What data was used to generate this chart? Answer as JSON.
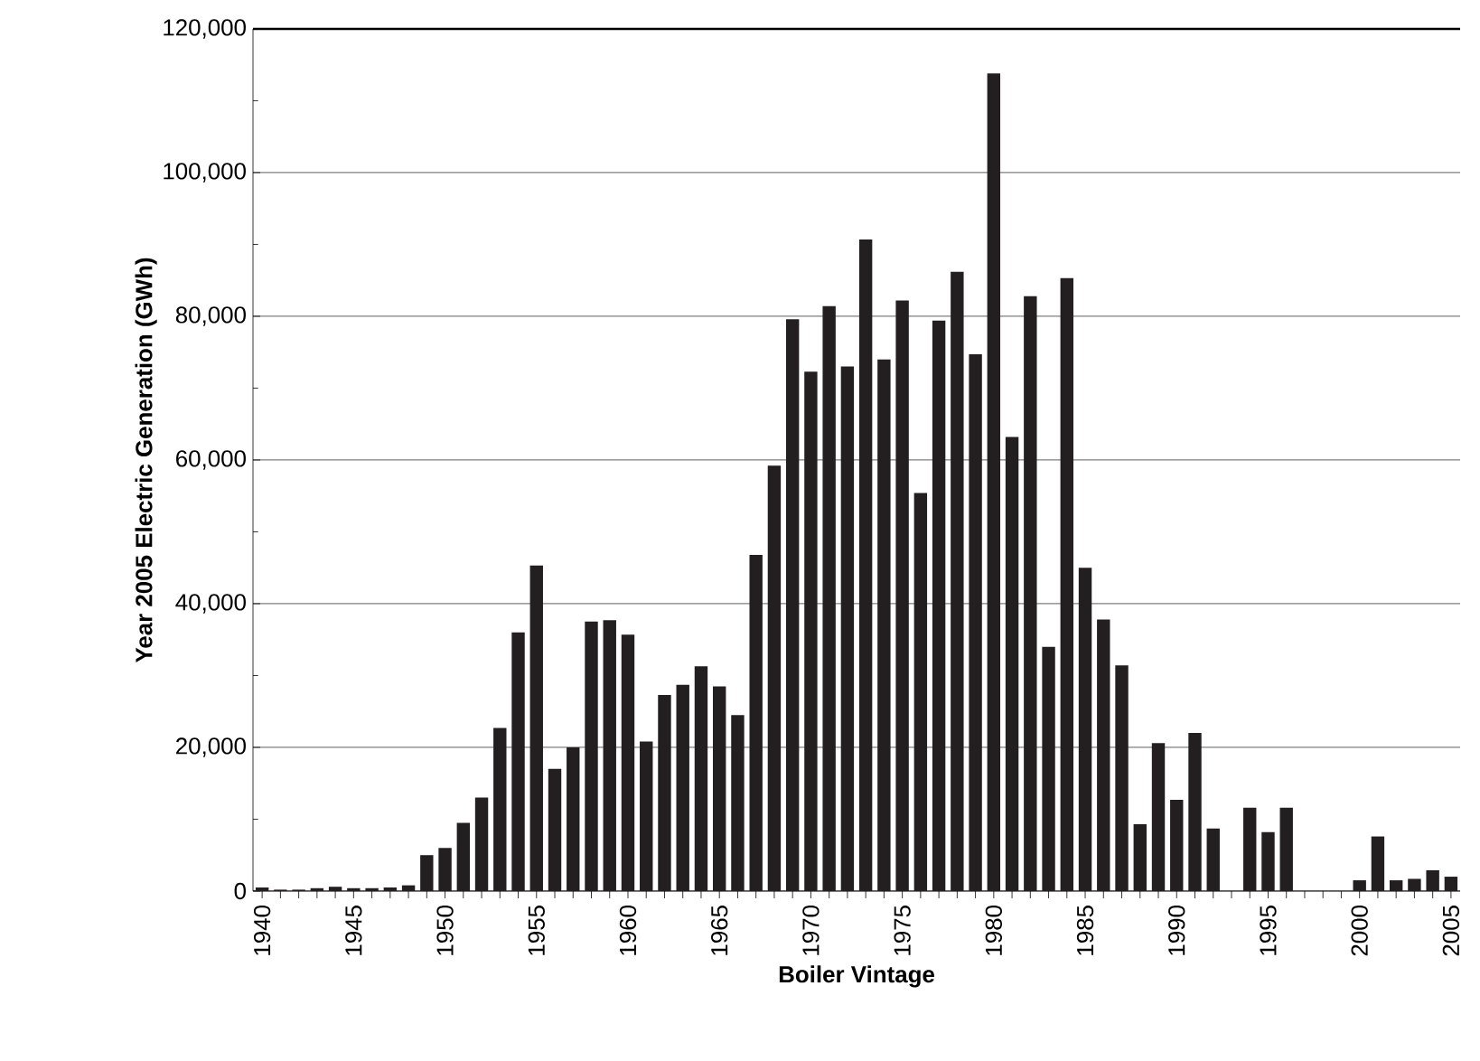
{
  "chart_data": {
    "type": "bar",
    "xlabel": "Boiler Vintage",
    "ylabel": "Year 2005 Electric Generation (GWh)",
    "categories": [
      "1940",
      null,
      null,
      null,
      null,
      "1945",
      null,
      null,
      null,
      null,
      "1950",
      null,
      null,
      null,
      null,
      "1955",
      null,
      null,
      null,
      null,
      "1960",
      null,
      null,
      null,
      null,
      "1965",
      null,
      null,
      null,
      null,
      "1970",
      null,
      null,
      null,
      null,
      "1975",
      null,
      null,
      null,
      null,
      "1980",
      null,
      null,
      null,
      null,
      "1985",
      null,
      null,
      null,
      null,
      "1990",
      null,
      null,
      null,
      null,
      "1995",
      null,
      null,
      null,
      null,
      "2000",
      null,
      null,
      null,
      null,
      "2005"
    ],
    "values": [
      500,
      200,
      200,
      400,
      600,
      400,
      400,
      500,
      800,
      5000,
      6000,
      9500,
      13000,
      22700,
      36000,
      45300,
      17000,
      20000,
      37500,
      37700,
      35700,
      20800,
      27300,
      28700,
      31300,
      28500,
      24500,
      46800,
      59200,
      79600,
      72300,
      81400,
      73000,
      90700,
      74000,
      82200,
      55400,
      79400,
      86200,
      74700,
      113800,
      63200,
      82800,
      34000,
      85300,
      45000,
      37800,
      31400,
      9300,
      20600,
      12700,
      22000,
      8700,
      0,
      11600,
      8200,
      11600,
      0,
      0,
      0,
      1500,
      7600,
      1500,
      1700,
      2900,
      2000
    ],
    "color": "#231f20",
    "ylim": [
      0,
      120000
    ],
    "yticks": [
      {
        "value": 0,
        "label": "0"
      },
      {
        "value": 20000,
        "label": "20,000"
      },
      {
        "value": 40000,
        "label": "40,000"
      },
      {
        "value": 60000,
        "label": "60,000"
      },
      {
        "value": 80000,
        "label": "80,000"
      },
      {
        "value": 100000,
        "label": "100,000"
      },
      {
        "value": 120000,
        "label": "120,000"
      }
    ],
    "grid": "y"
  }
}
